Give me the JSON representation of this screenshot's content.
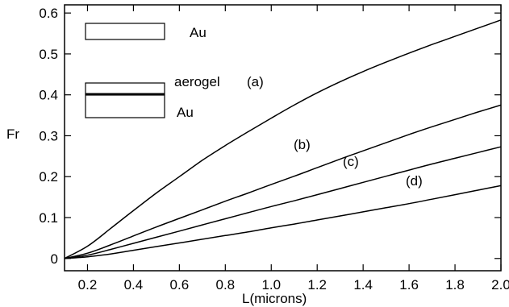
{
  "chart_data": {
    "type": "line",
    "title": "",
    "xlabel": "L(microns)",
    "ylabel": "Fr",
    "xlim": [
      0.1,
      2.0
    ],
    "ylim": [
      -0.03,
      0.62
    ],
    "grid": false,
    "x_ticks": [
      0.2,
      0.4,
      0.6,
      0.8,
      1.0,
      1.2,
      1.4,
      1.6,
      1.8,
      2.0
    ],
    "x_tick_labels": [
      "0.2",
      "0.4",
      "0.6",
      "0.8",
      "1.0",
      "1.2",
      "1.4",
      "1.6",
      "1.8",
      "2.0"
    ],
    "y_ticks": [
      0,
      0.1,
      0.2,
      0.3,
      0.4,
      0.5,
      0.6
    ],
    "y_tick_labels": [
      "0",
      "0.1",
      "0.2",
      "0.3",
      "0.4",
      "0.5",
      "0.6"
    ],
    "x": [
      0.1,
      0.2,
      0.3,
      0.4,
      0.5,
      0.6,
      0.7,
      0.8,
      0.9,
      1.0,
      1.1,
      1.2,
      1.3,
      1.4,
      1.5,
      1.6,
      1.7,
      1.8,
      1.9,
      2.0
    ],
    "series": [
      {
        "name": "(a)",
        "values": [
          0.0,
          0.03,
          0.073,
          0.117,
          0.16,
          0.2,
          0.24,
          0.276,
          0.31,
          0.343,
          0.375,
          0.405,
          0.432,
          0.457,
          0.48,
          0.502,
          0.523,
          0.543,
          0.563,
          0.583
        ]
      },
      {
        "name": "(b)",
        "values": [
          0.0,
          0.013,
          0.033,
          0.055,
          0.077,
          0.098,
          0.119,
          0.14,
          0.16,
          0.181,
          0.201,
          0.222,
          0.243,
          0.263,
          0.283,
          0.303,
          0.322,
          0.34,
          0.358,
          0.375
        ]
      },
      {
        "name": "(c)",
        "values": [
          0.0,
          0.008,
          0.022,
          0.037,
          0.052,
          0.067,
          0.082,
          0.097,
          0.112,
          0.127,
          0.141,
          0.156,
          0.171,
          0.186,
          0.201,
          0.216,
          0.231,
          0.245,
          0.259,
          0.273
        ]
      },
      {
        "name": "(d)",
        "values": [
          0.0,
          0.004,
          0.011,
          0.02,
          0.029,
          0.038,
          0.047,
          0.056,
          0.065,
          0.075,
          0.084,
          0.094,
          0.104,
          0.114,
          0.124,
          0.134,
          0.145,
          0.156,
          0.167,
          0.178
        ]
      }
    ],
    "annotations": {
      "inset_top_label": "Au",
      "inset_middle_label": "aerogel",
      "inset_bottom_label": "Au"
    }
  }
}
